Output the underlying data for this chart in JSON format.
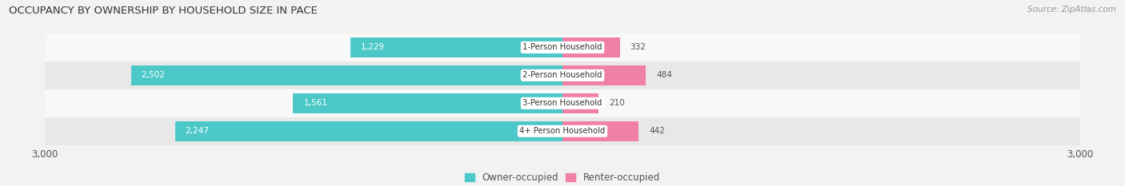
{
  "title": "OCCUPANCY BY OWNERSHIP BY HOUSEHOLD SIZE IN PACE",
  "source": "Source: ZipAtlas.com",
  "categories": [
    "1-Person Household",
    "2-Person Household",
    "3-Person Household",
    "4+ Person Household"
  ],
  "owner_values": [
    1229,
    2502,
    1561,
    2247
  ],
  "renter_values": [
    332,
    484,
    210,
    442
  ],
  "owner_color": "#4dc8c8",
  "renter_color": "#f080a8",
  "background_color": "#f2f2f2",
  "row_colors": [
    "#f8f8f8",
    "#e8e8e8",
    "#f8f8f8",
    "#e8e8e8"
  ],
  "xlim": 3000,
  "legend_labels": [
    "Owner-occupied",
    "Renter-occupied"
  ],
  "title_fontsize": 9.5,
  "bar_height": 0.72,
  "owner_label_threshold": 500
}
